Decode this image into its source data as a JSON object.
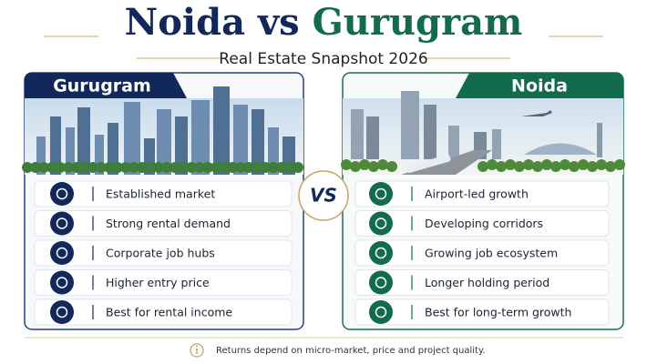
{
  "header": {
    "title_part1": "Noida",
    "title_vs": "vs",
    "title_part2": "Gurugram",
    "subtitle": "Real Estate Snapshot 2026"
  },
  "center_label": "VS",
  "panels": [
    {
      "name": "Gurugram",
      "items": [
        "Established market",
        "Strong rental demand",
        "Corporate job hubs",
        "Higher entry price",
        "Best for rental income"
      ]
    },
    {
      "name": "Noida",
      "items": [
        "Airport-led growth",
        "Developing corridors",
        "Growing job ecosystem",
        "Longer holding period",
        "Best for long-term growth"
      ]
    }
  ],
  "footer": {
    "note": "Returns depend on micro-market, price and project quality."
  }
}
